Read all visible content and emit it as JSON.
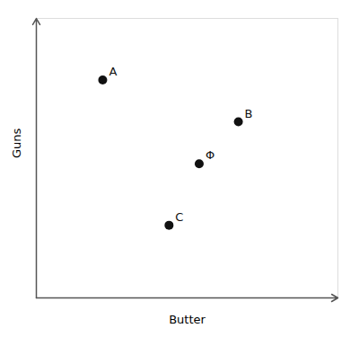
{
  "chart_data": {
    "type": "scatter",
    "xlabel": "Butter",
    "ylabel": "Guns",
    "x": [
      0.22,
      0.67,
      0.54,
      0.44
    ],
    "values": [
      0.78,
      0.63,
      0.48,
      0.26
    ],
    "labels": [
      "A",
      "B",
      "Φ",
      "C"
    ],
    "color": "#111111",
    "xlim": [
      0,
      1
    ],
    "ylim": [
      0,
      1
    ],
    "tick_labels": false
  }
}
